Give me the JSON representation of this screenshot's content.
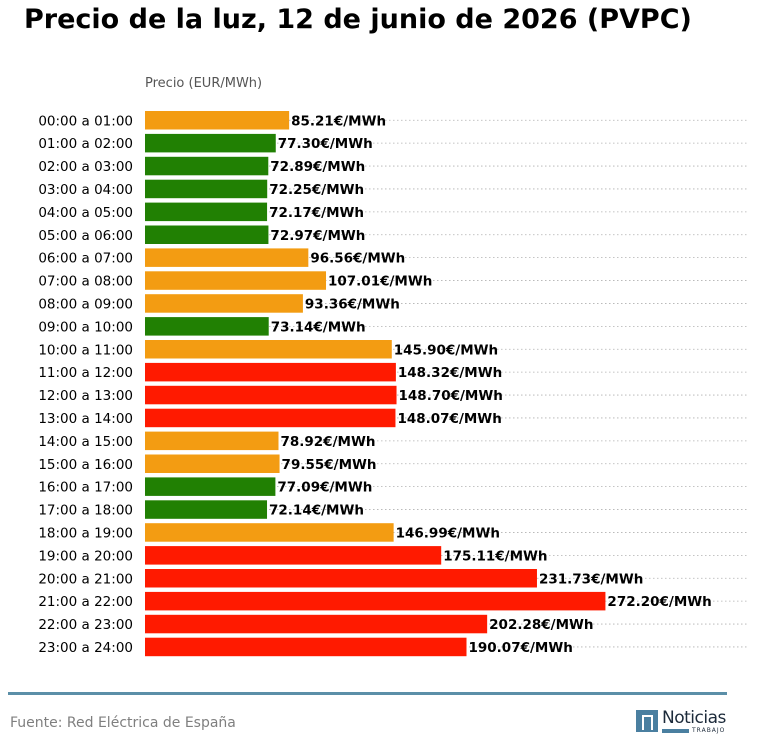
{
  "title": "Precio de la luz, 12 de junio de 2026 (PVPC)",
  "source": "Fuente: Red Eléctrica de España",
  "logo": {
    "word": "Noticias",
    "sub": "TRABAJO"
  },
  "colors": {
    "cheap": "#218003",
    "medium": "#f39c12",
    "expensive": "#ff1a00",
    "rule": "#5b8fa8"
  },
  "chart_data": {
    "type": "bar",
    "orientation": "horizontal",
    "title": "Precio de la luz, 12 de junio de 2026 (PVPC)",
    "axis_label": "Precio (EUR/MWh)",
    "value_suffix": "€/MWh",
    "grid": "dotted horizontal",
    "categories": [
      "00:00 a 01:00",
      "01:00 a 02:00",
      "02:00 a 03:00",
      "03:00 a 04:00",
      "04:00 a 05:00",
      "05:00 a 06:00",
      "06:00 a 07:00",
      "07:00 a 08:00",
      "08:00 a 09:00",
      "09:00 a 10:00",
      "10:00 a 11:00",
      "11:00 a 12:00",
      "12:00 a 13:00",
      "13:00 a 14:00",
      "14:00 a 15:00",
      "15:00 a 16:00",
      "16:00 a 17:00",
      "17:00 a 18:00",
      "18:00 a 19:00",
      "19:00 a 20:00",
      "20:00 a 21:00",
      "21:00 a 22:00",
      "22:00 a 23:00",
      "23:00 a 24:00"
    ],
    "values": [
      85.21,
      77.3,
      72.89,
      72.25,
      72.17,
      72.97,
      96.56,
      107.01,
      93.36,
      73.14,
      145.9,
      148.32,
      148.7,
      148.07,
      78.92,
      79.55,
      77.09,
      72.14,
      146.99,
      175.11,
      231.73,
      272.2,
      202.28,
      190.07
    ],
    "value_labels": [
      "85.21€/MWh",
      "77.30€/MWh",
      "72.89€/MWh",
      "72.25€/MWh",
      "72.17€/MWh",
      "72.97€/MWh",
      "96.56€/MWh",
      "107.01€/MWh",
      "93.36€/MWh",
      "73.14€/MWh",
      "145.90€/MWh",
      "148.32€/MWh",
      "148.70€/MWh",
      "148.07€/MWh",
      "78.92€/MWh",
      "79.55€/MWh",
      "77.09€/MWh",
      "72.14€/MWh",
      "146.99€/MWh",
      "175.11€/MWh",
      "231.73€/MWh",
      "272.20€/MWh",
      "202.28€/MWh",
      "190.07€/MWh"
    ],
    "bar_colors": [
      "medium",
      "cheap",
      "cheap",
      "cheap",
      "cheap",
      "cheap",
      "medium",
      "medium",
      "medium",
      "cheap",
      "medium",
      "expensive",
      "expensive",
      "expensive",
      "medium",
      "medium",
      "cheap",
      "cheap",
      "medium",
      "expensive",
      "expensive",
      "expensive",
      "expensive",
      "expensive"
    ]
  }
}
